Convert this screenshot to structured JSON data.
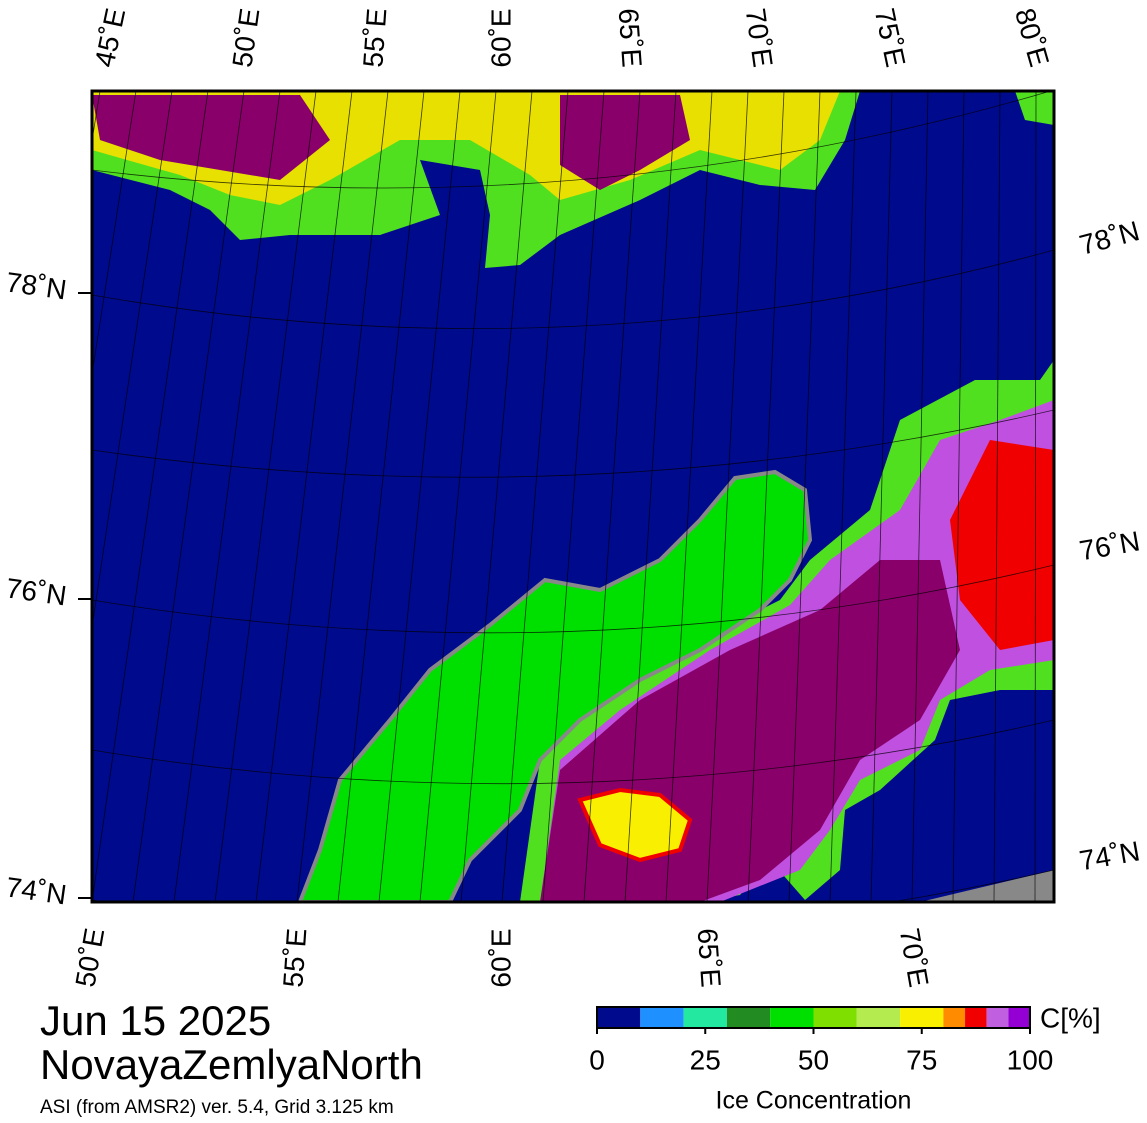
{
  "map": {
    "top_lon_labels": [
      "45˚E",
      "50˚E",
      "55˚E",
      "60˚E",
      "65˚E",
      "70˚E",
      "75˚E",
      "80˚E"
    ],
    "bottom_lon_labels": [
      "50˚E",
      "55˚E",
      "60˚E",
      "65˚E",
      "70˚E"
    ],
    "left_lat_labels": [
      "78˚N",
      "76˚N",
      "74˚N"
    ],
    "right_lat_labels": [
      "78˚N",
      "76˚N",
      "74˚N"
    ]
  },
  "date": "Jun 15 2025",
  "region": "NovayaZemlyaNorth",
  "source": "ASI (from AMSR2) ver. 5.4,  Grid 3.125 km",
  "colorbar": {
    "title": "Ice Concentration",
    "unit_label": "C[%]",
    "lim": [
      0,
      100
    ],
    "bins": [
      0,
      10,
      20,
      30,
      40,
      50,
      60,
      70,
      80,
      85,
      90,
      95,
      100
    ],
    "colors": [
      "#000a8c",
      "#1e90ff",
      "#22e8a0",
      "#228b22",
      "#00e000",
      "#7fe000",
      "#b4ec50",
      "#f8f000",
      "#ff8c00",
      "#f00000",
      "#c060e0",
      "#9400d3"
    ],
    "ticks": [
      0,
      25,
      50,
      75,
      100
    ]
  }
}
